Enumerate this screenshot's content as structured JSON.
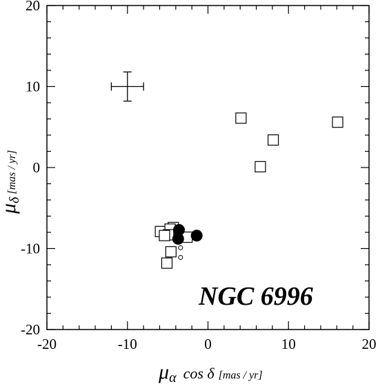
{
  "chart_data": {
    "type": "scatter",
    "title": "",
    "xlabel": {
      "symbol": "μ",
      "subscript": "α",
      "middle": "cos δ",
      "unit": "[mas / yr]"
    },
    "ylabel": {
      "symbol": "μ",
      "subscript": "δ",
      "unit": "[mas / yr]"
    },
    "xlim": [
      -20,
      20
    ],
    "ylim": [
      -20,
      20
    ],
    "xticks": [
      -20,
      -10,
      0,
      10,
      20
    ],
    "yticks": [
      -20,
      -10,
      0,
      10,
      20
    ],
    "xtick_labels": [
      "-20",
      "-10",
      "0",
      "10",
      "20"
    ],
    "ytick_labels": [
      "-20",
      "-10",
      "0",
      "10",
      "20"
    ],
    "minor_tick_step": 2,
    "grid": false,
    "annotation": "NGC 6996",
    "error_bar": {
      "x": -10,
      "y": 10,
      "xerr": 2,
      "yerr": 1.8
    },
    "series": [
      {
        "marker": "open-square",
        "points": [
          [
            4.1,
            6.1
          ],
          [
            8.1,
            3.4
          ],
          [
            16.1,
            5.6
          ],
          [
            6.5,
            0.1
          ],
          [
            -5.9,
            -7.9
          ],
          [
            -4.3,
            -7.4
          ],
          [
            -4.7,
            -7.6
          ],
          [
            -4.9,
            -8.3
          ],
          [
            -5.4,
            -8.4
          ],
          [
            -2.6,
            -8.6
          ],
          [
            -4.6,
            -10.4
          ],
          [
            -5.1,
            -11.8
          ]
        ]
      },
      {
        "marker": "filled-circle",
        "points": [
          [
            -3.6,
            -7.7
          ],
          [
            -3.7,
            -8.8
          ],
          [
            -1.4,
            -8.4
          ]
        ]
      },
      {
        "marker": "small-open-circle",
        "points": [
          [
            -3.4,
            -9.9
          ],
          [
            -3.4,
            -11.1
          ]
        ]
      }
    ]
  }
}
